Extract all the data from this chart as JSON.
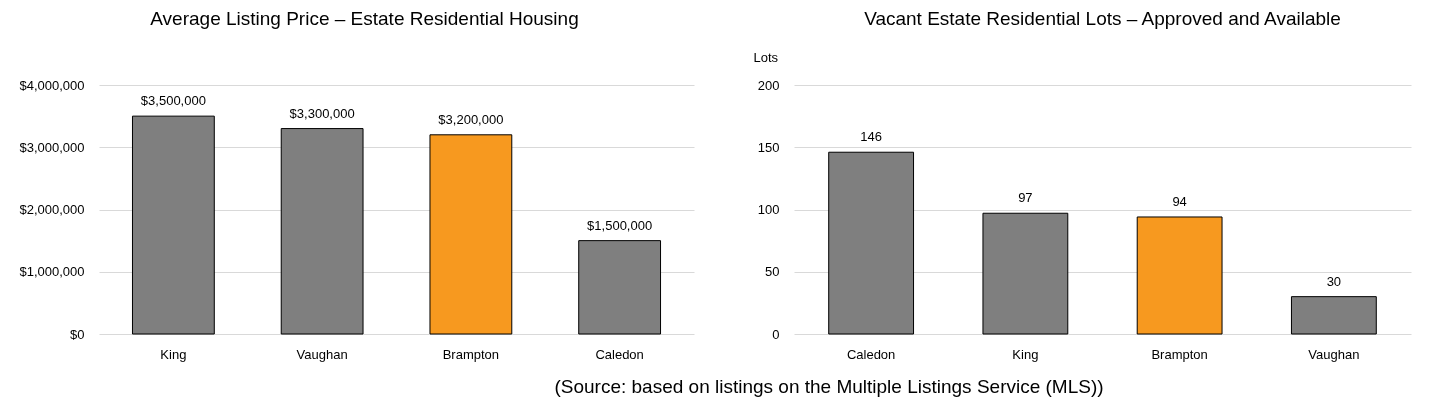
{
  "chart_data": [
    {
      "type": "bar",
      "title": "Average Listing Price – Estate Residential Housing",
      "categories": [
        "King",
        "Vaughan",
        "Brampton",
        "Caledon"
      ],
      "values": [
        3500000,
        3300000,
        3200000,
        1500000
      ],
      "colors": [
        "#7f7f7f",
        "#7f7f7f",
        "#f7991f",
        "#7f7f7f"
      ],
      "value_labels": [
        "$3,500,000",
        "$3,300,000",
        "$3,200,000",
        "$1,500,000"
      ],
      "ylim": [
        0,
        4000000
      ],
      "yticks": [
        {
          "value": 0,
          "label": "$0"
        },
        {
          "value": 1000000,
          "label": "$1,000,000"
        },
        {
          "value": 2000000,
          "label": "$2,000,000"
        },
        {
          "value": 3000000,
          "label": "$3,000,000"
        },
        {
          "value": 4000000,
          "label": "$4,000,000"
        }
      ],
      "grid": "y"
    },
    {
      "type": "bar",
      "title": "Vacant Estate Residential Lots – Approved and Available",
      "ylabel": "Lots",
      "categories": [
        "Caledon",
        "King",
        "Brampton",
        "Vaughan"
      ],
      "values": [
        146,
        97,
        94,
        30
      ],
      "colors": [
        "#7f7f7f",
        "#7f7f7f",
        "#f7991f",
        "#7f7f7f"
      ],
      "data_labels": true,
      "ylim": [
        0,
        200
      ],
      "yticks": [
        0,
        50,
        100,
        150,
        200
      ],
      "grid": "y",
      "annotations": [
        "(Source: based on listings on the Multiple Listings Service (MLS))"
      ]
    }
  ]
}
